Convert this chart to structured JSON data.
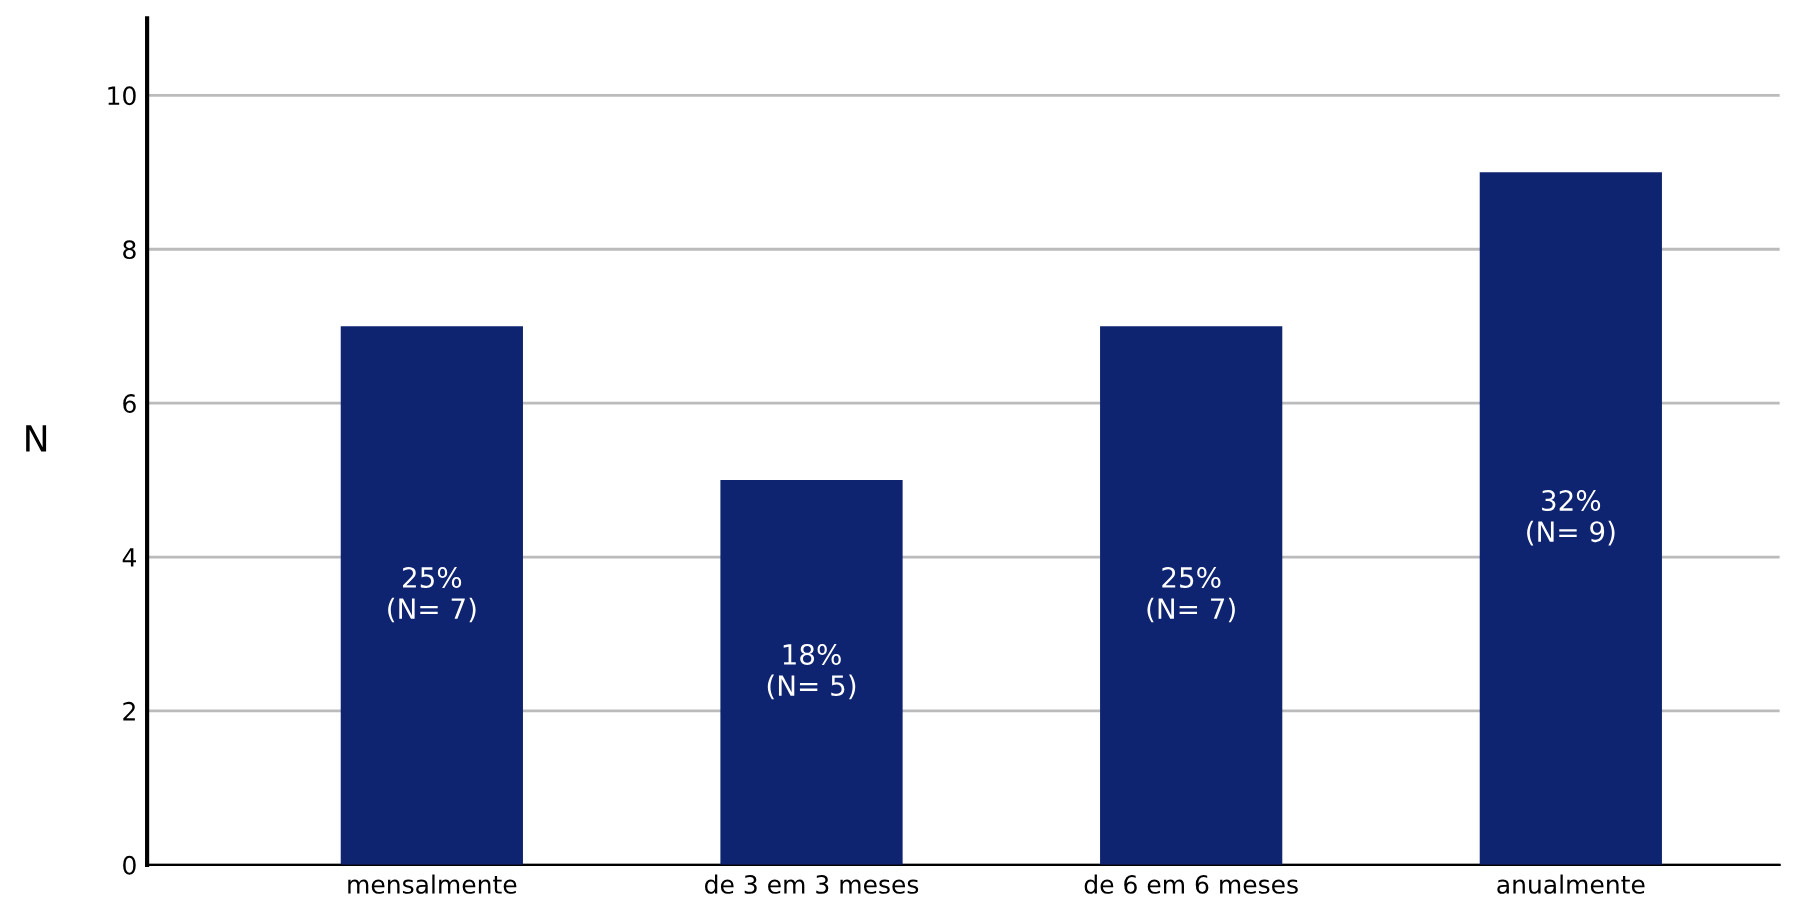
{
  "chart_data": {
    "type": "bar",
    "ylabel": "N",
    "categories": [
      "mensalmente",
      "de 3 em 3 meses",
      "de 6 em 6 meses",
      "anualmente"
    ],
    "values": [
      7,
      5,
      7,
      9
    ],
    "color": "#0f2470",
    "value_labels": [
      "25%\n(N= 7)",
      "18%\n(N= 5)",
      "25%\n(N= 7)",
      "32%\n(N= 9)"
    ],
    "ylim": [
      0,
      11
    ],
    "yticks": [
      0,
      2,
      4,
      6,
      8,
      10
    ],
    "grid": "y"
  }
}
